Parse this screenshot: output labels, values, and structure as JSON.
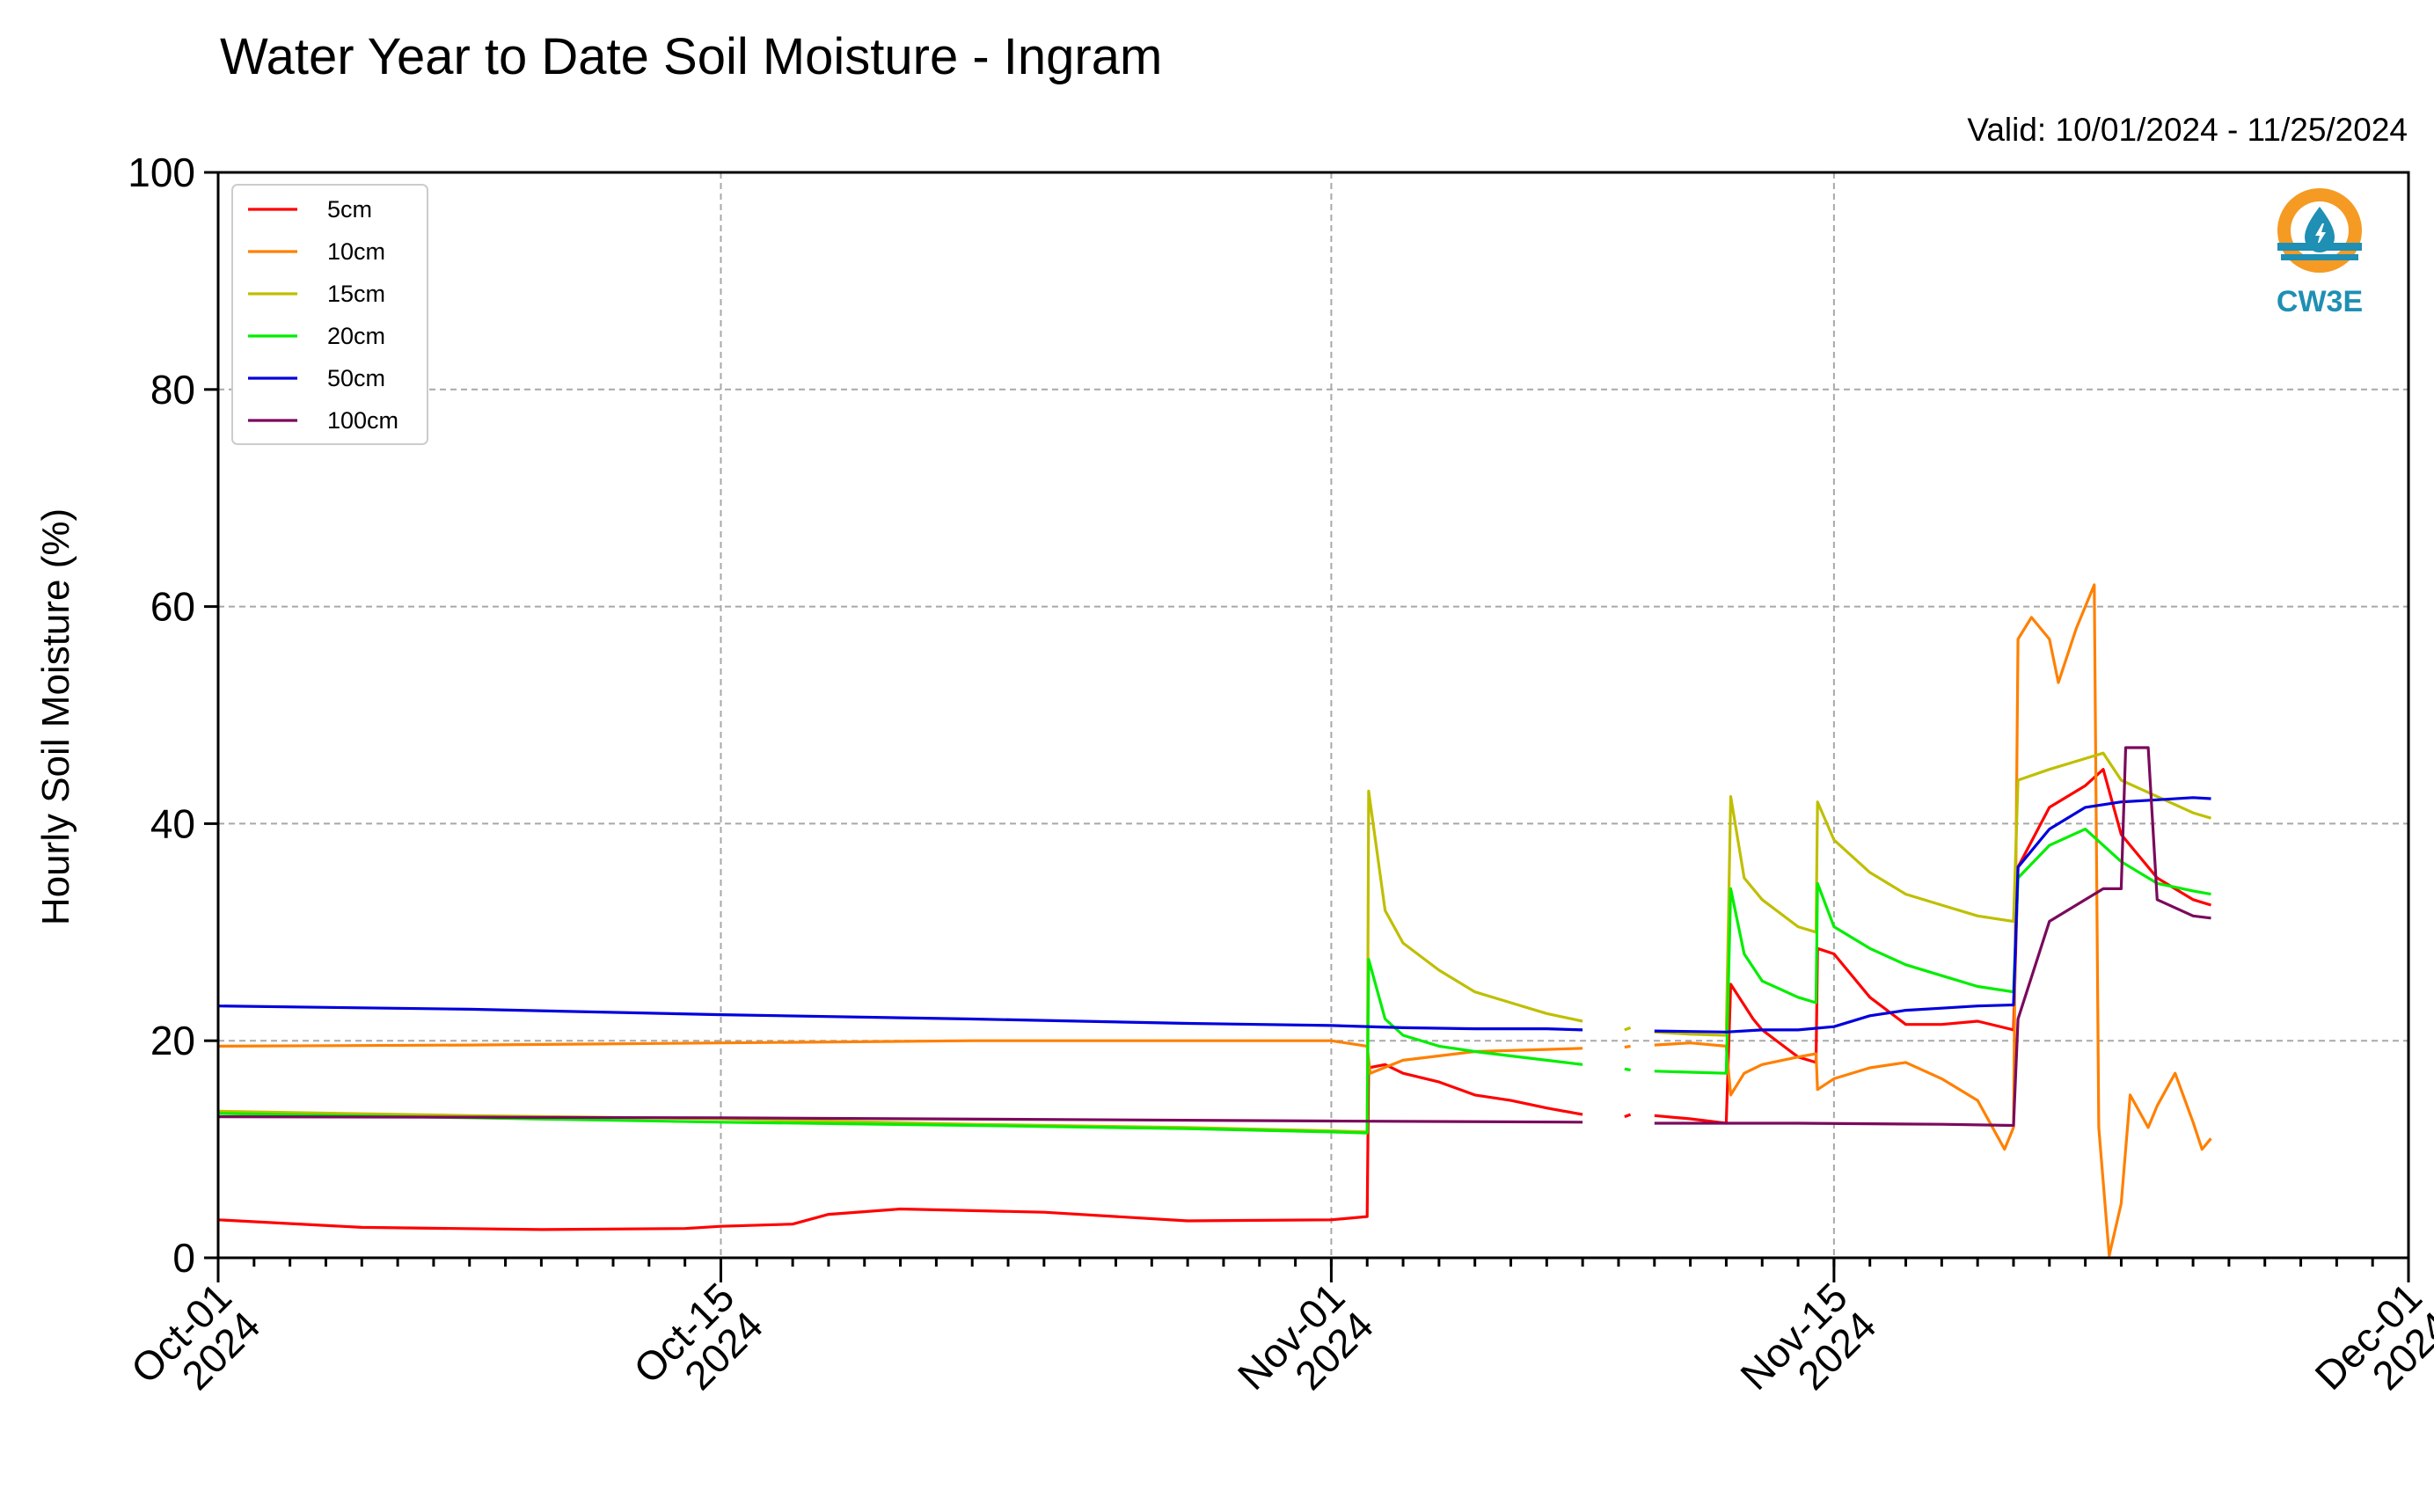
{
  "chart_data": {
    "type": "line",
    "title": "Water Year to Date Soil Moisture - Ingram",
    "subtitle": "Valid: 10/01/2024 - 11/25/2024",
    "ylabel": "Hourly Soil Moisture (%)",
    "xlabel": "",
    "ylim": [
      0,
      100
    ],
    "xlim": [
      "2024-10-01",
      "2024-12-01"
    ],
    "yticks": [
      "0",
      "20",
      "40",
      "60",
      "80",
      "100"
    ],
    "xticks": [
      {
        "date": "2024-10-01",
        "line1": "Oct-01",
        "line2": "2024"
      },
      {
        "date": "2024-10-15",
        "line1": "Oct-15",
        "line2": "2024"
      },
      {
        "date": "2024-11-01",
        "line1": "Nov-01",
        "line2": "2024"
      },
      {
        "date": "2024-11-15",
        "line1": "Nov-15",
        "line2": "2024"
      },
      {
        "date": "2024-12-01",
        "line1": "Dec-01",
        "line2": "2024"
      }
    ],
    "grid": true,
    "legend_position": "top-left",
    "series": [
      {
        "name": "5cm",
        "color": "#ff0000",
        "points": [
          [
            "2024-10-01",
            3.5
          ],
          [
            "2024-10-05",
            2.8
          ],
          [
            "2024-10-10",
            2.6
          ],
          [
            "2024-10-14",
            2.7
          ],
          [
            "2024-10-15",
            2.9
          ],
          [
            "2024-10-17",
            3.1
          ],
          [
            "2024-10-18",
            4.0
          ],
          [
            "2024-10-20",
            4.5
          ],
          [
            "2024-10-24",
            4.2
          ],
          [
            "2024-10-28",
            3.4
          ],
          [
            "2024-11-01",
            3.5
          ],
          [
            "2024-11-02T00:00",
            3.8
          ],
          [
            "2024-11-02T01:00",
            17.5
          ],
          [
            "2024-11-02T12:00",
            17.8
          ],
          [
            "2024-11-03",
            17.0
          ],
          [
            "2024-11-04",
            16.2
          ],
          [
            "2024-11-05",
            15.0
          ],
          [
            "2024-11-06",
            14.5
          ],
          [
            "2024-11-07",
            13.8
          ],
          [
            "2024-11-08",
            13.2
          ],
          [
            null,
            null
          ],
          [
            "2024-11-09T04:00",
            13.0
          ],
          [
            "2024-11-09T08:00",
            13.2
          ],
          [
            null,
            null
          ],
          [
            "2024-11-10",
            13.1
          ],
          [
            "2024-11-11",
            12.8
          ],
          [
            "2024-11-12",
            12.4
          ],
          [
            "2024-11-12T03:00",
            25.2
          ],
          [
            "2024-11-12T18:00",
            22.0
          ],
          [
            "2024-11-13",
            21.0
          ],
          [
            "2024-11-14",
            18.5
          ],
          [
            "2024-11-14T12:00",
            18.0
          ],
          [
            "2024-11-14T13:00",
            28.5
          ],
          [
            "2024-11-15",
            28.0
          ],
          [
            "2024-11-16",
            24.0
          ],
          [
            "2024-11-17",
            21.5
          ],
          [
            "2024-11-18",
            21.5
          ],
          [
            "2024-11-19",
            21.8
          ],
          [
            "2024-11-20",
            21.0
          ],
          [
            "2024-11-20T03:00",
            36.0
          ],
          [
            "2024-11-21",
            41.5
          ],
          [
            "2024-11-22",
            43.5
          ],
          [
            "2024-11-22T12:00",
            45.0
          ],
          [
            "2024-11-23",
            39.0
          ],
          [
            "2024-11-24",
            35.0
          ],
          [
            "2024-11-25",
            33.0
          ],
          [
            "2024-11-25T12:00",
            32.5
          ]
        ]
      },
      {
        "name": "10cm",
        "color": "#ff8000",
        "points": [
          [
            "2024-10-01",
            19.5
          ],
          [
            "2024-10-08",
            19.6
          ],
          [
            "2024-10-15",
            19.8
          ],
          [
            "2024-10-22",
            20.0
          ],
          [
            "2024-11-01",
            20.0
          ],
          [
            "2024-11-02T00:00",
            19.5
          ],
          [
            "2024-11-02T02:00",
            17.0
          ],
          [
            "2024-11-03",
            18.2
          ],
          [
            "2024-11-05",
            19.0
          ],
          [
            "2024-11-07",
            19.2
          ],
          [
            "2024-11-08",
            19.3
          ],
          [
            null,
            null
          ],
          [
            "2024-11-09T04:00",
            19.4
          ],
          [
            "2024-11-09T08:00",
            19.5
          ],
          [
            null,
            null
          ],
          [
            "2024-11-10",
            19.6
          ],
          [
            "2024-11-11",
            19.8
          ],
          [
            "2024-11-12",
            19.5
          ],
          [
            "2024-11-12T03:00",
            15.0
          ],
          [
            "2024-11-12T12:00",
            17.0
          ],
          [
            "2024-11-13",
            17.8
          ],
          [
            "2024-11-14",
            18.5
          ],
          [
            "2024-11-14T12:00",
            18.8
          ],
          [
            "2024-11-14T13:00",
            15.5
          ],
          [
            "2024-11-15",
            16.5
          ],
          [
            "2024-11-16",
            17.5
          ],
          [
            "2024-11-17",
            18.0
          ],
          [
            "2024-11-18",
            16.5
          ],
          [
            "2024-11-19",
            14.5
          ],
          [
            "2024-11-19T18:00",
            10.0
          ],
          [
            "2024-11-20",
            12.0
          ],
          [
            "2024-11-20T03:00",
            57.0
          ],
          [
            "2024-11-20T12:00",
            59.0
          ],
          [
            "2024-11-21",
            57.0
          ],
          [
            "2024-11-21T06:00",
            53.0
          ],
          [
            "2024-11-21T18:00",
            58.0
          ],
          [
            "2024-11-22",
            60.0
          ],
          [
            "2024-11-22T06:00",
            62.0
          ],
          [
            "2024-11-22T09:00",
            12.0
          ],
          [
            "2024-11-22T16:00",
            0.2
          ],
          [
            "2024-11-23",
            5.0
          ],
          [
            "2024-11-23T06:00",
            15.0
          ],
          [
            "2024-11-23T18:00",
            12.0
          ],
          [
            "2024-11-24",
            14.0
          ],
          [
            "2024-11-24T12:00",
            17.0
          ],
          [
            "2024-11-25",
            12.5
          ],
          [
            "2024-11-25T06:00",
            10.0
          ],
          [
            "2024-11-25T12:00",
            11.0
          ]
        ]
      },
      {
        "name": "15cm",
        "color": "#bfbf00",
        "points": [
          [
            "2024-10-01",
            13.5
          ],
          [
            "2024-10-08",
            13.1
          ],
          [
            "2024-10-15",
            12.8
          ],
          [
            "2024-10-22",
            12.3
          ],
          [
            "2024-10-28",
            12.0
          ],
          [
            "2024-11-01",
            11.7
          ],
          [
            "2024-11-02T00:00",
            11.6
          ],
          [
            "2024-11-02T01:00",
            43.0
          ],
          [
            "2024-11-02T12:00",
            32.0
          ],
          [
            "2024-11-03",
            29.0
          ],
          [
            "2024-11-04",
            26.5
          ],
          [
            "2024-11-05",
            24.5
          ],
          [
            "2024-11-06",
            23.5
          ],
          [
            "2024-11-07",
            22.5
          ],
          [
            "2024-11-08",
            21.8
          ],
          [
            null,
            null
          ],
          [
            "2024-11-09T04:00",
            21.0
          ],
          [
            "2024-11-09T08:00",
            21.2
          ],
          [
            null,
            null
          ],
          [
            "2024-11-10",
            20.8
          ],
          [
            "2024-11-11",
            20.6
          ],
          [
            "2024-11-12",
            20.5
          ],
          [
            "2024-11-12T03:00",
            42.5
          ],
          [
            "2024-11-12T12:00",
            35.0
          ],
          [
            "2024-11-13",
            33.0
          ],
          [
            "2024-11-14",
            30.5
          ],
          [
            "2024-11-14T12:00",
            30.0
          ],
          [
            "2024-11-14T13:00",
            42.0
          ],
          [
            "2024-11-15",
            38.5
          ],
          [
            "2024-11-16",
            35.5
          ],
          [
            "2024-11-17",
            33.5
          ],
          [
            "2024-11-18",
            32.5
          ],
          [
            "2024-11-19",
            31.5
          ],
          [
            "2024-11-20",
            31.0
          ],
          [
            "2024-11-20T03:00",
            44.0
          ],
          [
            "2024-11-21",
            45.0
          ],
          [
            "2024-11-22",
            46.0
          ],
          [
            "2024-11-22T12:00",
            46.5
          ],
          [
            "2024-11-23",
            44.0
          ],
          [
            "2024-11-24",
            42.5
          ],
          [
            "2024-11-25",
            41.0
          ],
          [
            "2024-11-25T12:00",
            40.5
          ]
        ]
      },
      {
        "name": "20cm",
        "color": "#00ee00",
        "points": [
          [
            "2024-10-01",
            13.3
          ],
          [
            "2024-10-08",
            12.9
          ],
          [
            "2024-10-15",
            12.5
          ],
          [
            "2024-10-22",
            12.2
          ],
          [
            "2024-10-28",
            11.9
          ],
          [
            "2024-11-01",
            11.6
          ],
          [
            "2024-11-02T00:00",
            11.5
          ],
          [
            "2024-11-02T01:00",
            27.5
          ],
          [
            "2024-11-02T12:00",
            22.0
          ],
          [
            "2024-11-03",
            20.5
          ],
          [
            "2024-11-04",
            19.5
          ],
          [
            "2024-11-05",
            19.0
          ],
          [
            "2024-11-06",
            18.6
          ],
          [
            "2024-11-07",
            18.2
          ],
          [
            "2024-11-08",
            17.8
          ],
          [
            null,
            null
          ],
          [
            "2024-11-09T04:00",
            17.4
          ],
          [
            "2024-11-09T08:00",
            17.3
          ],
          [
            null,
            null
          ],
          [
            "2024-11-10",
            17.2
          ],
          [
            "2024-11-11",
            17.1
          ],
          [
            "2024-11-12",
            17.0
          ],
          [
            "2024-11-12T03:00",
            34.0
          ],
          [
            "2024-11-12T12:00",
            28.0
          ],
          [
            "2024-11-13",
            25.5
          ],
          [
            "2024-11-14",
            24.0
          ],
          [
            "2024-11-14T12:00",
            23.5
          ],
          [
            "2024-11-14T13:00",
            34.5
          ],
          [
            "2024-11-15",
            30.5
          ],
          [
            "2024-11-16",
            28.5
          ],
          [
            "2024-11-17",
            27.0
          ],
          [
            "2024-11-18",
            26.0
          ],
          [
            "2024-11-19",
            25.0
          ],
          [
            "2024-11-20",
            24.5
          ],
          [
            "2024-11-20T03:00",
            35.0
          ],
          [
            "2024-11-21",
            38.0
          ],
          [
            "2024-11-22",
            39.5
          ],
          [
            "2024-11-22T12:00",
            38.0
          ],
          [
            "2024-11-23",
            36.5
          ],
          [
            "2024-11-24",
            34.5
          ],
          [
            "2024-11-25",
            33.8
          ],
          [
            "2024-11-25T12:00",
            33.5
          ]
        ]
      },
      {
        "name": "50cm",
        "color": "#0000dd",
        "points": [
          [
            "2024-10-01",
            23.2
          ],
          [
            "2024-10-08",
            22.9
          ],
          [
            "2024-10-15",
            22.4
          ],
          [
            "2024-10-22",
            22.0
          ],
          [
            "2024-10-28",
            21.6
          ],
          [
            "2024-11-01",
            21.4
          ],
          [
            "2024-11-03",
            21.2
          ],
          [
            "2024-11-05",
            21.1
          ],
          [
            "2024-11-07",
            21.1
          ],
          [
            "2024-11-08",
            21.0
          ],
          [
            null,
            null
          ],
          [
            "2024-11-10",
            20.9
          ],
          [
            "2024-11-12",
            20.8
          ],
          [
            "2024-11-13",
            21.0
          ],
          [
            "2024-11-14",
            21.0
          ],
          [
            "2024-11-15",
            21.3
          ],
          [
            "2024-11-16",
            22.3
          ],
          [
            "2024-11-17",
            22.8
          ],
          [
            "2024-11-18",
            23.0
          ],
          [
            "2024-11-19",
            23.2
          ],
          [
            "2024-11-20",
            23.3
          ],
          [
            "2024-11-20T03:00",
            36.0
          ],
          [
            "2024-11-21",
            39.5
          ],
          [
            "2024-11-22",
            41.5
          ],
          [
            "2024-11-23",
            42.0
          ],
          [
            "2024-11-24",
            42.2
          ],
          [
            "2024-11-25",
            42.4
          ],
          [
            "2024-11-25T12:00",
            42.3
          ]
        ]
      },
      {
        "name": "100cm",
        "color": "#7a0a5c",
        "points": [
          [
            "2024-10-01",
            13.0
          ],
          [
            "2024-10-15",
            12.9
          ],
          [
            "2024-11-01",
            12.6
          ],
          [
            "2024-11-08",
            12.5
          ],
          [
            null,
            null
          ],
          [
            "2024-11-10",
            12.4
          ],
          [
            "2024-11-14",
            12.4
          ],
          [
            "2024-11-18",
            12.3
          ],
          [
            "2024-11-20",
            12.2
          ],
          [
            "2024-11-20T03:00",
            22.0
          ],
          [
            "2024-11-21",
            31.0
          ],
          [
            "2024-11-22",
            33.0
          ],
          [
            "2024-11-22T12:00",
            34.0
          ],
          [
            "2024-11-23",
            34.0
          ],
          [
            "2024-11-23T03:00",
            47.0
          ],
          [
            "2024-11-23T18:00",
            47.0
          ],
          [
            "2024-11-24",
            33.0
          ],
          [
            "2024-11-25",
            31.5
          ],
          [
            "2024-11-25T12:00",
            31.3
          ]
        ]
      }
    ]
  },
  "logo": {
    "text": "CW3E",
    "ring_color": "#f59a22",
    "wave_color": "#1f8fb4"
  }
}
